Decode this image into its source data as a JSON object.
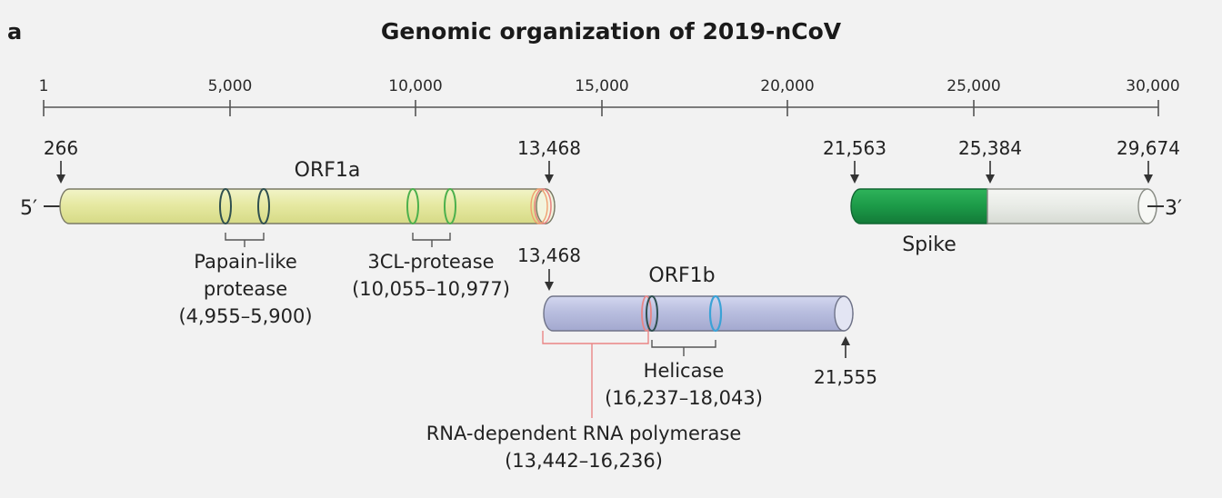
{
  "panel_label": "a",
  "title": "Genomic organization of 2019-nCoV",
  "axis": {
    "ticks": [
      "1",
      "5,000",
      "10,000",
      "15,000",
      "20,000",
      "25,000",
      "30,000"
    ]
  },
  "ends": {
    "five_prime": "5′",
    "three_prime": "3′"
  },
  "positions": {
    "orf1a_start": "266",
    "orf1a_end": "13,468",
    "orf1b_start": "13,468",
    "orf1b_end": "21,555",
    "spike_start": "21,563",
    "spike_end": "25,384",
    "genome_end": "29,674"
  },
  "genes": {
    "orf1a": "ORF1a",
    "orf1b": "ORF1b",
    "spike": "Spike"
  },
  "domains": {
    "papain_line1": "Papain-like",
    "papain_line2": "protease",
    "papain_range": "(4,955–5,900)",
    "cl_protease": "3CL-protease",
    "cl_range": "(10,055–10,977)",
    "helicase": "Helicase",
    "helicase_range": "(16,237–18,043)",
    "rdrp": "RNA-dependent RNA polymerase",
    "rdrp_range": "(13,442–16,236)"
  },
  "colors": {
    "orf1a_fill": "#e6e9a2",
    "orf1b_fill": "#b9bedf",
    "spike_fill": "#1c9a48",
    "tail_fill": "#e8ebe6",
    "green_ring": "#4cb04c",
    "dark_ring": "#2f4f4f",
    "blue_ring": "#3ba2d6",
    "red_line": "#e98585"
  }
}
